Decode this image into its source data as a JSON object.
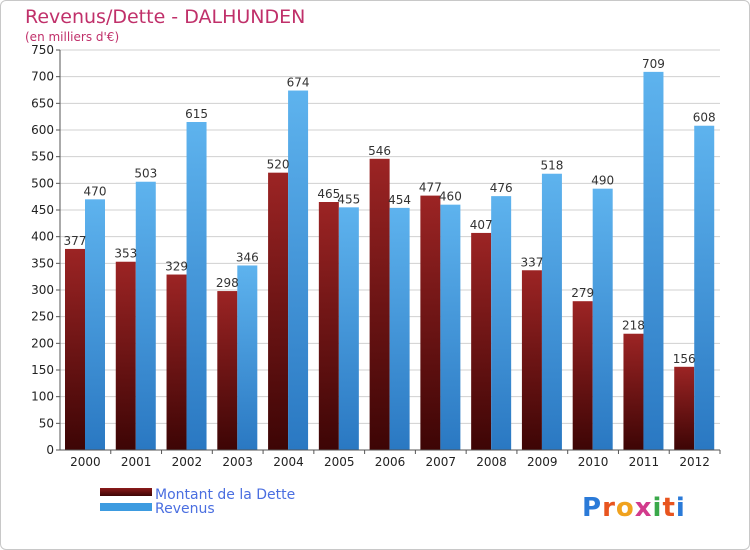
{
  "chart_data": {
    "type": "bar",
    "title": "Revenus/Dette - DALHUNDEN",
    "subtitle": "(en milliers d'€)",
    "categories": [
      "2000",
      "2001",
      "2002",
      "2003",
      "2004",
      "2005",
      "2006",
      "2007",
      "2008",
      "2009",
      "2010",
      "2011",
      "2012"
    ],
    "series": [
      {
        "name": "Montant de la Dette",
        "color": "#8b1a1a",
        "values": [
          377,
          353,
          329,
          298,
          520,
          465,
          546,
          477,
          407,
          337,
          279,
          218,
          156
        ]
      },
      {
        "name": "Revenus",
        "color": "#3d9be0",
        "values": [
          470,
          503,
          615,
          346,
          674,
          455,
          454,
          460,
          476,
          518,
          490,
          709,
          608
        ]
      }
    ],
    "ylim": [
      0,
      750
    ],
    "yticks": [
      0,
      50,
      100,
      150,
      200,
      250,
      300,
      350,
      400,
      450,
      500,
      550,
      600,
      650,
      700,
      750
    ],
    "grid": true,
    "legend": "bottom-left",
    "xlabel": "",
    "ylabel": ""
  },
  "colors": {
    "title": "#c0306a",
    "legend_text": "#4a6ee0",
    "grid": "#d0d0d0"
  },
  "logo": {
    "text": "Proxiti"
  }
}
